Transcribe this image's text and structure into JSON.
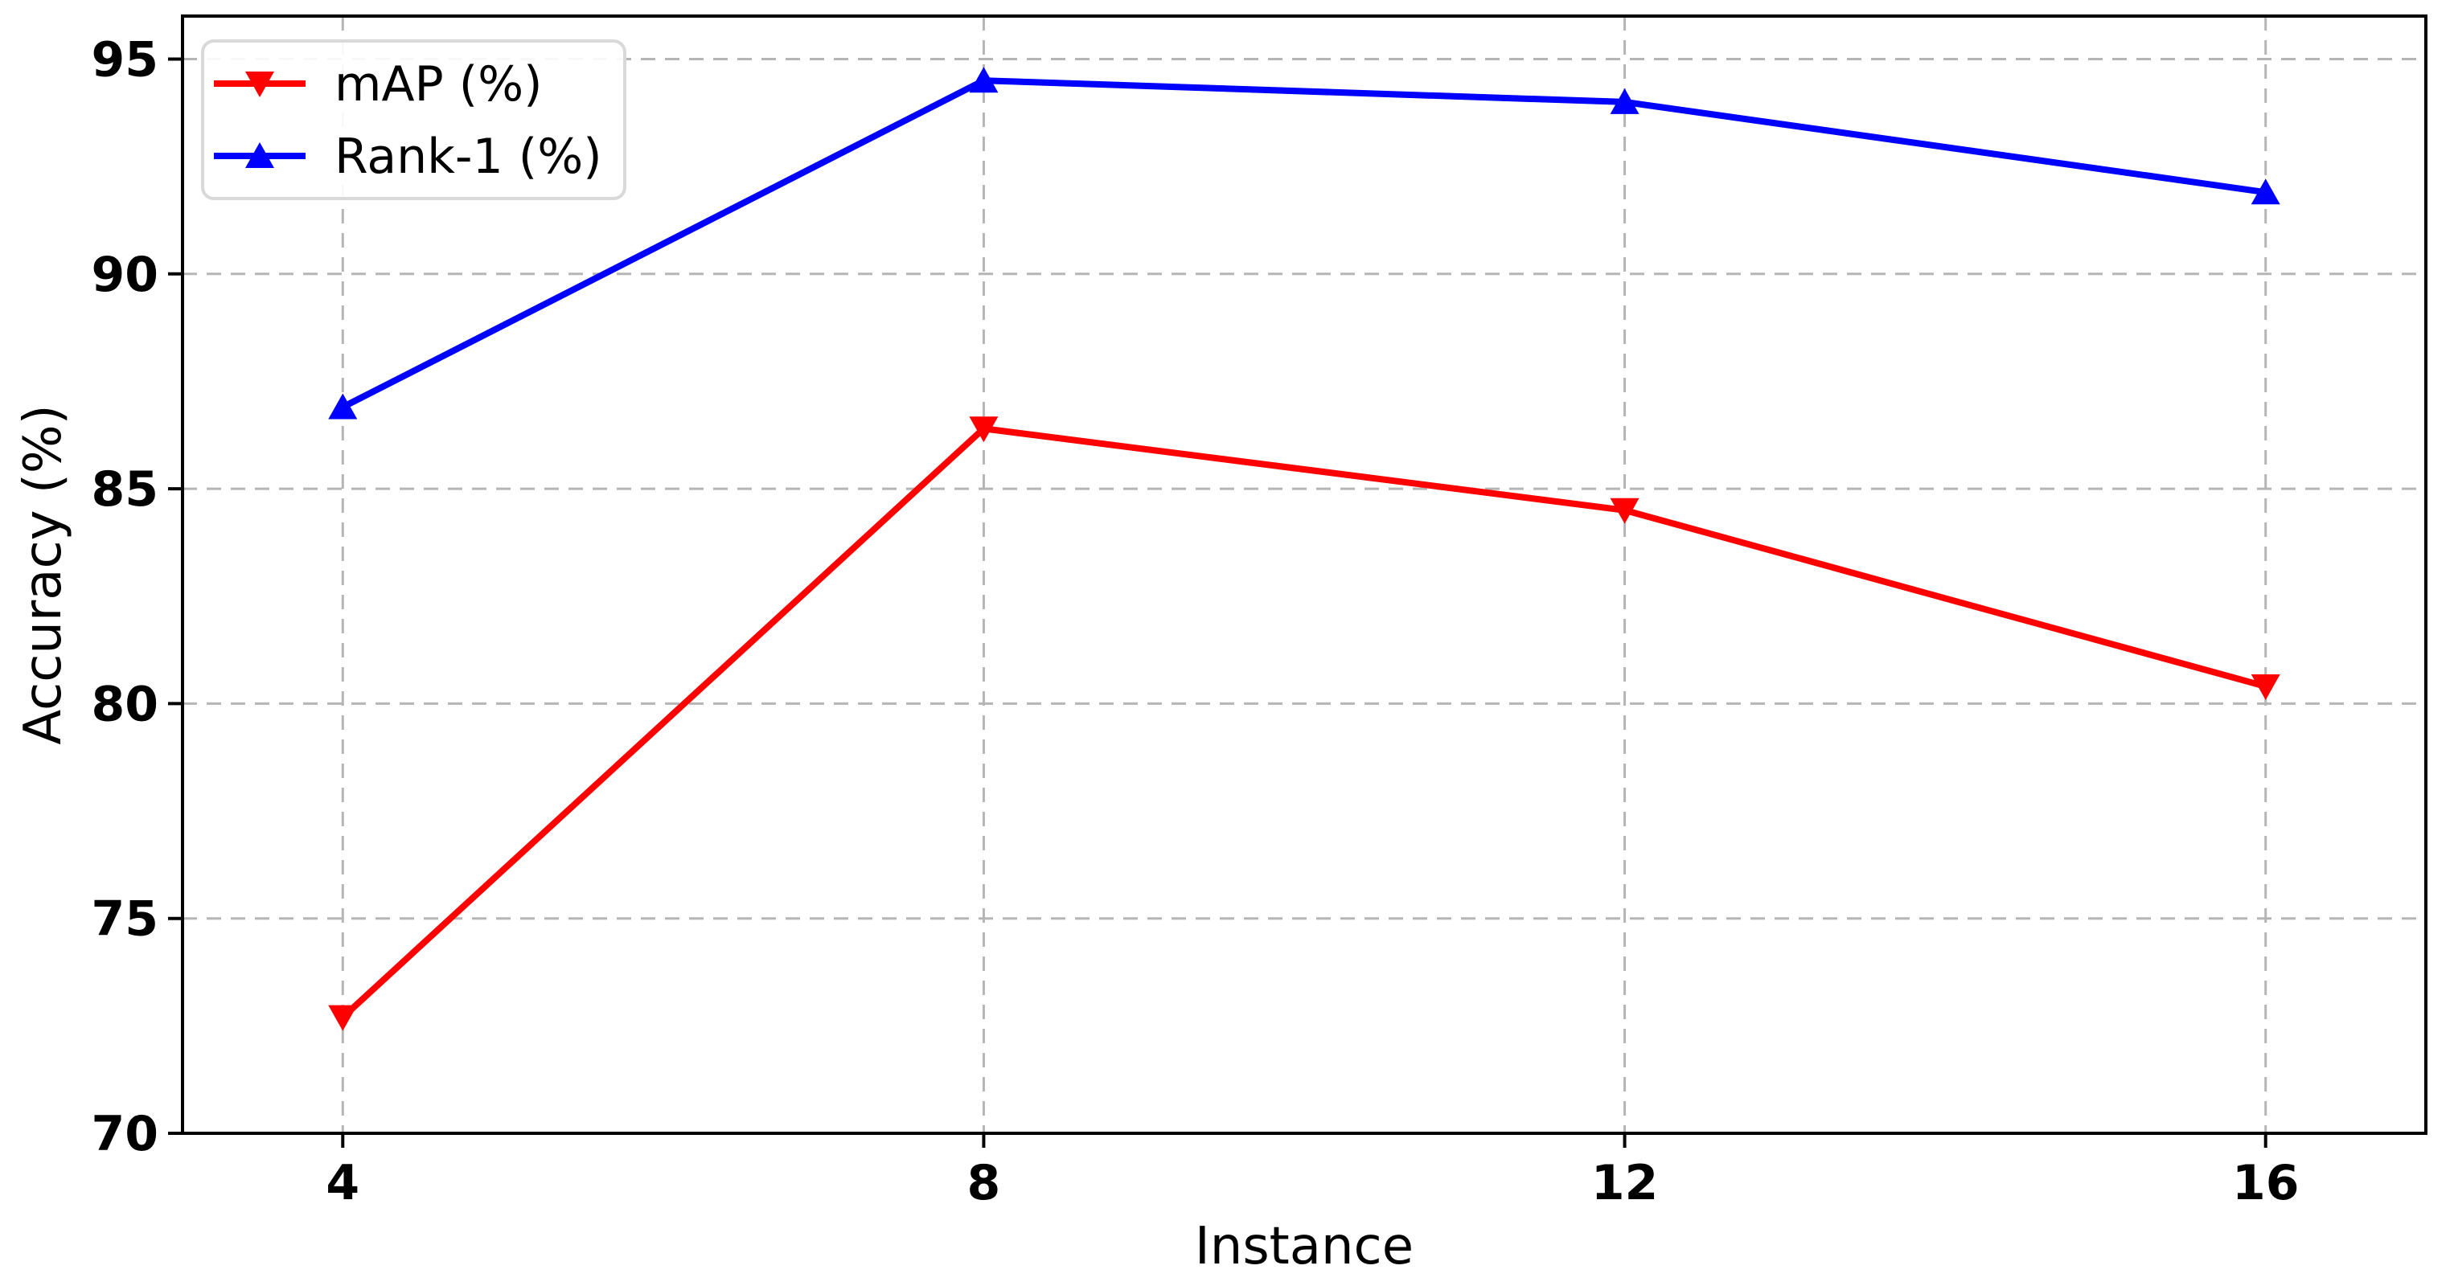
{
  "page": {
    "background": "#ffffff"
  },
  "chart_data": {
    "type": "line",
    "title": "",
    "xlabel": "Instance",
    "ylabel": "Accuracy (%)",
    "x": [
      4,
      8,
      12,
      16
    ],
    "series": [
      {
        "name": "mAP (%)",
        "color": "#ff0000",
        "marker": "triangle-down",
        "values": [
          72.7,
          86.4,
          84.5,
          80.4
        ]
      },
      {
        "name": "Rank-1 (%)",
        "color": "#0000ff",
        "marker": "triangle-up",
        "values": [
          86.9,
          94.5,
          94.0,
          91.9
        ]
      }
    ],
    "xticks": [
      4,
      8,
      12,
      16
    ],
    "yticks": [
      70,
      75,
      80,
      85,
      90,
      95
    ],
    "xtick_labels": [
      "4",
      "8",
      "12",
      "16"
    ],
    "ytick_labels": [
      "70",
      "75",
      "80",
      "85",
      "90",
      "95"
    ],
    "xlim": [
      3,
      17
    ],
    "ylim": [
      70,
      96
    ],
    "grid": true,
    "grid_style": "dashed",
    "legend_position": "upper-left",
    "colors": {
      "grid": "#b5b5b5",
      "axis": "#000000",
      "text": "#000000",
      "legend_border": "#d9d9d9",
      "background": "#ffffff"
    }
  }
}
